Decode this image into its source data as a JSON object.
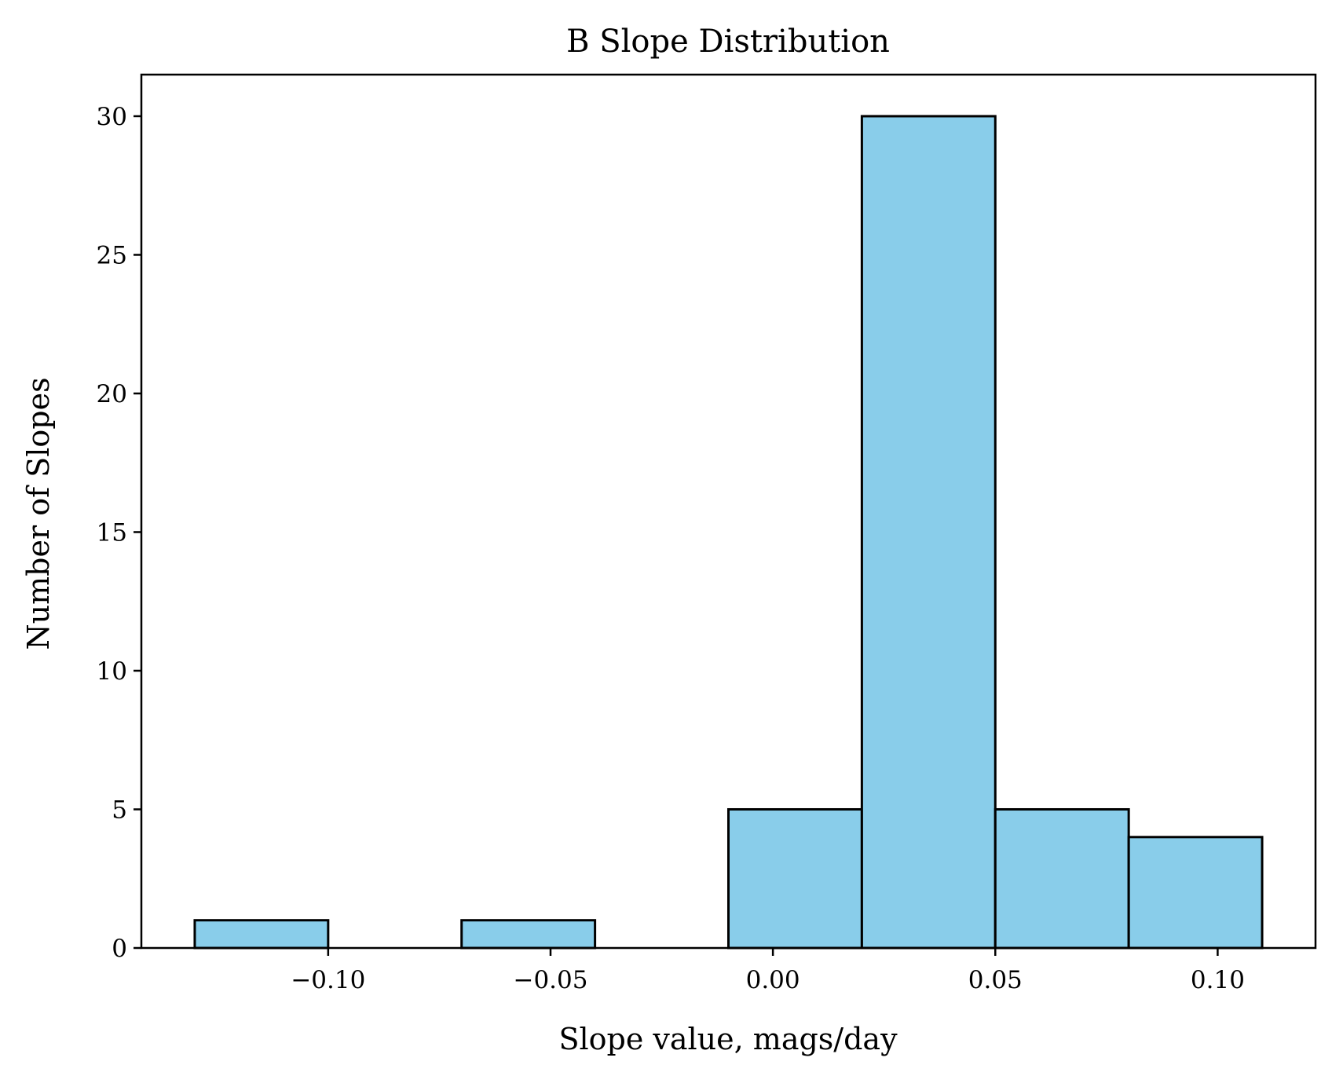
{
  "chart_data": {
    "type": "bar",
    "title": "B Slope Distribution",
    "xlabel": "Slope value, mags/day",
    "ylabel": "Number of Slopes",
    "bins": [
      {
        "start": -0.13,
        "end": -0.1,
        "count": 1
      },
      {
        "start": -0.1,
        "end": -0.07,
        "count": 0
      },
      {
        "start": -0.07,
        "end": -0.04,
        "count": 1
      },
      {
        "start": -0.04,
        "end": -0.01,
        "count": 0
      },
      {
        "start": -0.01,
        "end": 0.02,
        "count": 5
      },
      {
        "start": 0.02,
        "end": 0.05,
        "count": 30
      },
      {
        "start": 0.05,
        "end": 0.08,
        "count": 5
      },
      {
        "start": 0.08,
        "end": 0.11,
        "count": 4
      }
    ],
    "xlim": [
      -0.142,
      0.122
    ],
    "ylim": [
      0,
      31.5
    ],
    "xticks": [
      {
        "value": -0.1,
        "label": "−0.10"
      },
      {
        "value": -0.05,
        "label": "−0.05"
      },
      {
        "value": 0.0,
        "label": "0.00"
      },
      {
        "value": 0.05,
        "label": "0.05"
      },
      {
        "value": 0.1,
        "label": "0.10"
      }
    ],
    "yticks": [
      {
        "value": 0,
        "label": "0"
      },
      {
        "value": 5,
        "label": "5"
      },
      {
        "value": 10,
        "label": "10"
      },
      {
        "value": 15,
        "label": "15"
      },
      {
        "value": 20,
        "label": "20"
      },
      {
        "value": 25,
        "label": "25"
      },
      {
        "value": 30,
        "label": "30"
      }
    ],
    "grid": false,
    "bar_color": "#89CDEA",
    "edge_color": "#000000"
  }
}
